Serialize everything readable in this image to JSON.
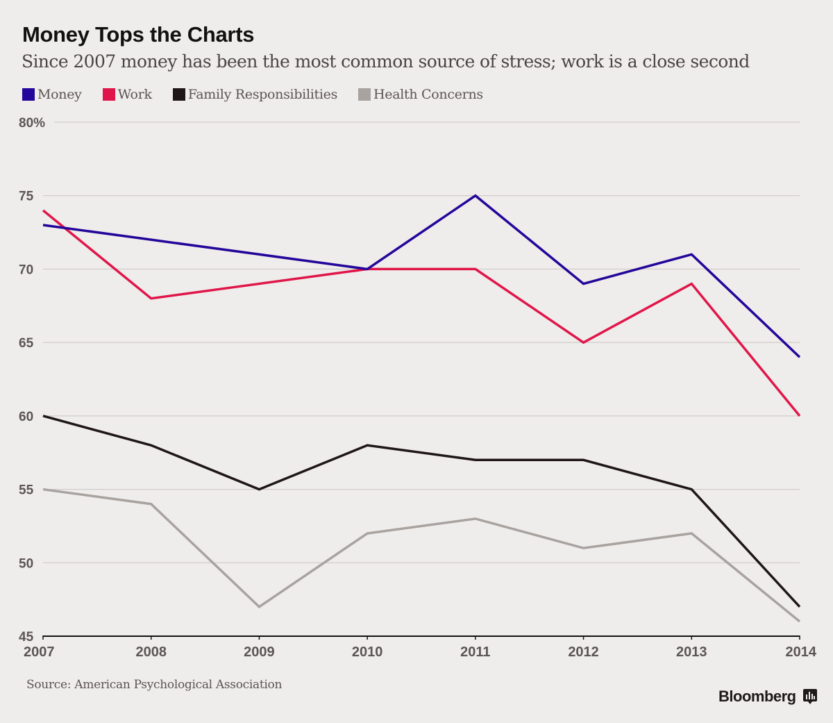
{
  "chart_data": {
    "type": "line",
    "title": "Money Tops the Charts",
    "subtitle": "Since 2007 money has been the most common source of stress; work is a close second",
    "xlabel": "",
    "ylabel": "",
    "x": [
      "2007",
      "2008",
      "2009",
      "2010",
      "2011",
      "2012",
      "2013",
      "2014"
    ],
    "ylim": [
      45,
      80
    ],
    "yticks": [
      {
        "value": 80,
        "label": "80%"
      },
      {
        "value": 75,
        "label": "75"
      },
      {
        "value": 70,
        "label": "70"
      },
      {
        "value": 65,
        "label": "65"
      },
      {
        "value": 60,
        "label": "60"
      },
      {
        "value": 55,
        "label": "55"
      },
      {
        "value": 50,
        "label": "50"
      },
      {
        "value": 45,
        "label": "45"
      }
    ],
    "grid": true,
    "legend_position": "top-left",
    "series": [
      {
        "name": "Money",
        "color": "#23069a",
        "values": [
          73,
          72,
          71,
          70,
          75,
          69,
          71,
          64
        ]
      },
      {
        "name": "Work",
        "color": "#e0164a",
        "values": [
          74,
          68,
          69,
          70,
          70,
          65,
          69,
          60
        ]
      },
      {
        "name": "Family Responsibilities",
        "color": "#1e1716",
        "values": [
          60,
          58,
          55,
          58,
          57,
          57,
          55,
          47
        ]
      },
      {
        "name": "Health Concerns",
        "color": "#a9a3a0",
        "values": [
          55,
          54,
          47,
          52,
          53,
          51,
          52,
          46
        ]
      }
    ],
    "source": "Source: American Psychological Association"
  },
  "branding": {
    "name": "Bloomberg",
    "icon": "bar-chart-speech-icon"
  }
}
